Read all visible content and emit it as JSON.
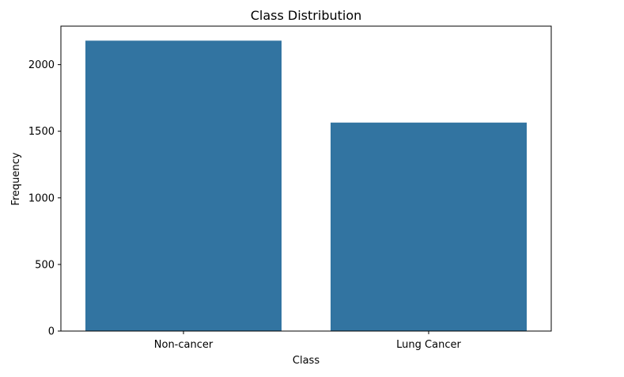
{
  "chart_data": {
    "type": "bar",
    "title": "Class Distribution",
    "xlabel": "Class",
    "ylabel": "Frequency",
    "categories": [
      "Non-cancer",
      "Lung Cancer"
    ],
    "values": [
      2180,
      1565
    ],
    "ylim": [
      0,
      2289
    ],
    "yticks": [
      0,
      500,
      1000,
      1500,
      2000
    ],
    "grid": false,
    "bar_color": "#3274a1"
  }
}
